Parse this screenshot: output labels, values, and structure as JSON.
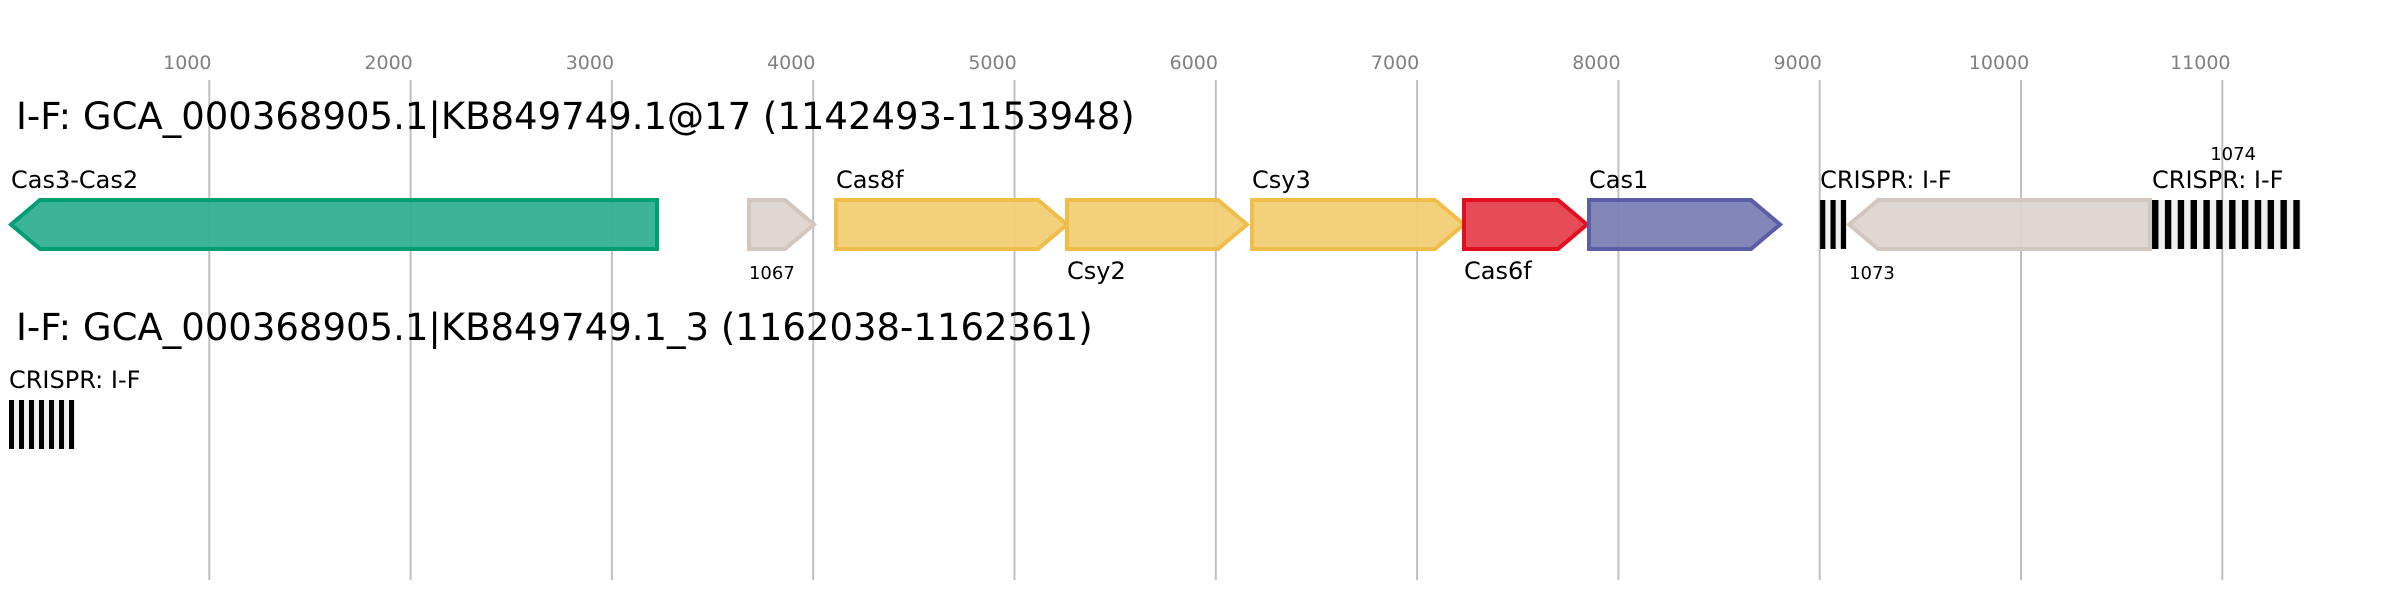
{
  "chart_data": {
    "type": "gene-map",
    "axis": {
      "unit": "bp",
      "ticks": [
        1000,
        2000,
        3000,
        4000,
        5000,
        6000,
        7000,
        8000,
        9000,
        10000,
        11000
      ],
      "grid": true
    },
    "colors": {
      "Cas3-Cas2": {
        "fill": "#33b090",
        "stroke": "#009e73"
      },
      "yellow": {
        "fill": "#f2cd75",
        "stroke": "#efbd4a"
      },
      "Cas6f": {
        "fill": "#e5414f",
        "stroke": "#e01020"
      },
      "Cas1": {
        "fill": "#7b7fb5",
        "stroke": "#5b5ea6"
      },
      "unknown": {
        "fill": "#dcd5d0",
        "stroke": "#d2c7be"
      },
      "crispr": "#000000"
    },
    "tracks": [
      {
        "title": "I-F: GCA_000368905.1|KB849749.1@17 (1142493-1153948)",
        "features": [
          {
            "label": "Cas3-Cas2",
            "start": 15,
            "end": 3224,
            "strand": "-",
            "color": "Cas3-Cas2",
            "label_pos": "above"
          },
          {
            "label": "1067",
            "start": 3681,
            "end": 4004,
            "strand": "+",
            "color": "unknown",
            "label_pos": "below-small"
          },
          {
            "label": "Cas8f",
            "start": 4113,
            "end": 5261,
            "strand": "+",
            "color": "yellow",
            "label_pos": "above"
          },
          {
            "label": "Csy2",
            "start": 5261,
            "end": 6155,
            "strand": "+",
            "color": "yellow",
            "label_pos": "below"
          },
          {
            "label": "Csy3",
            "start": 6180,
            "end": 7233,
            "strand": "+",
            "color": "yellow",
            "label_pos": "above"
          },
          {
            "label": "Cas6f",
            "start": 7233,
            "end": 7844,
            "strand": "+",
            "color": "Cas6f",
            "label_pos": "below"
          },
          {
            "label": "Cas1",
            "start": 7854,
            "end": 8803,
            "strand": "+",
            "color": "Cas1",
            "label_pos": "above"
          },
          {
            "label": "CRISPR: I-F",
            "start": 9002,
            "end": 9136,
            "type": "crispr",
            "repeats": 3,
            "label_pos": "above"
          },
          {
            "label": "1073",
            "start": 9146,
            "end": 10641,
            "strand": "-",
            "color": "unknown",
            "label_pos": "below-small"
          },
          {
            "label": "CRISPR: I-F",
            "start": 10651,
            "end": 11391,
            "type": "crispr",
            "repeats": 12,
            "label_pos": "above"
          },
          {
            "label": "1074",
            "start": 10940,
            "end": 10940,
            "type": "note",
            "label_pos": "above-small"
          }
        ]
      },
      {
        "title": "I-F: GCA_000368905.1|KB849749.1_3 (1162038-1162361)",
        "features": [
          {
            "label": "CRISPR: I-F",
            "start": 5,
            "end": 333,
            "type": "crispr",
            "repeats": 7,
            "label_pos": "above"
          }
        ]
      }
    ]
  }
}
